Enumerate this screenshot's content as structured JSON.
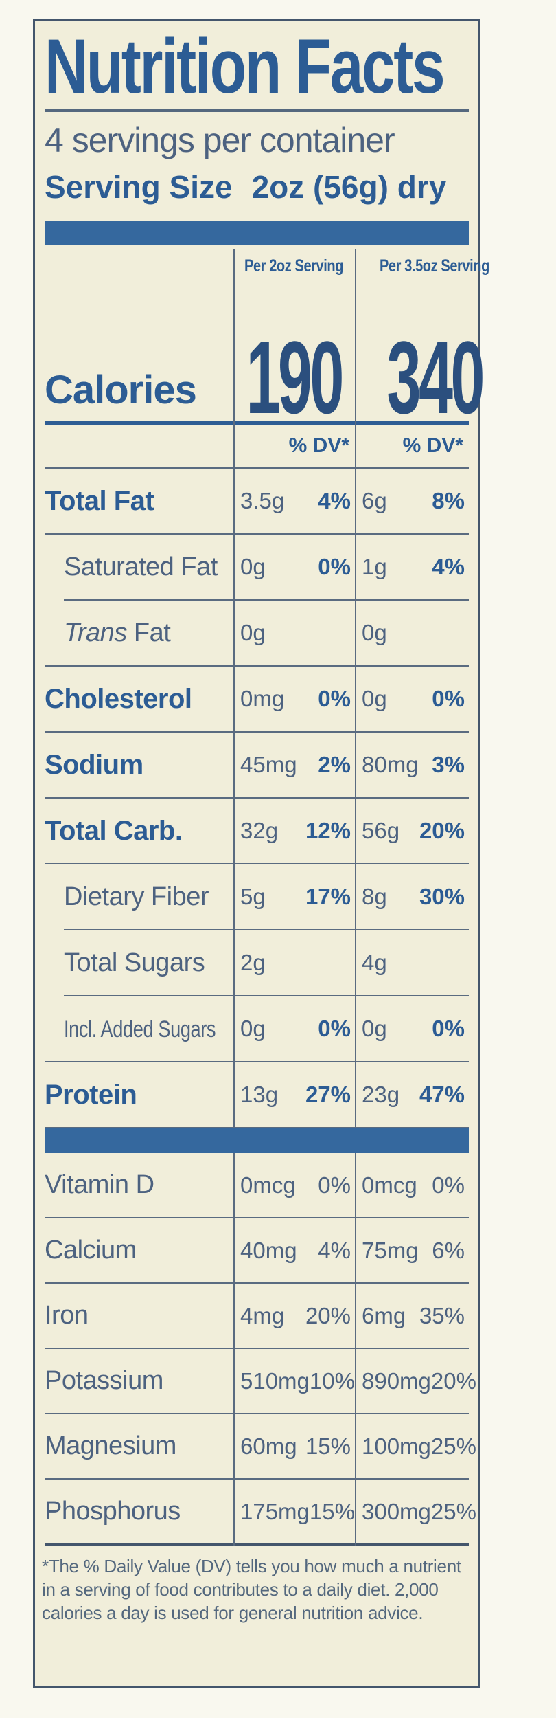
{
  "header": {
    "title": "Nutrition Facts",
    "servings_per_container": "4 servings per container",
    "serving_size_label": "Serving Size",
    "serving_size_value": "2oz (56g) dry"
  },
  "calories": {
    "label": "Calories",
    "col1_header": "Per 2oz Serving",
    "col2_header": "Per 3.5oz Serving",
    "col1_value": "190",
    "col2_value": "340"
  },
  "dv_header": "% DV*",
  "nutrients": [
    {
      "label": "Total Fat",
      "style": "main",
      "cells": [
        {
          "amt": "3.5g",
          "dv": "4%"
        },
        {
          "amt": "6g",
          "dv": "8%"
        }
      ]
    },
    {
      "label": "Saturated Fat",
      "style": "sub",
      "cells": [
        {
          "amt": "0g",
          "dv": "0%"
        },
        {
          "amt": "1g",
          "dv": "4%"
        }
      ]
    },
    {
      "label_italic": "Trans",
      "label_rest": " Fat",
      "style": "sub-italic",
      "cells": [
        {
          "amt": "0g",
          "dv": ""
        },
        {
          "amt": "0g",
          "dv": ""
        }
      ]
    },
    {
      "label": "Cholesterol",
      "style": "main",
      "cells": [
        {
          "amt": "0mg",
          "dv": "0%"
        },
        {
          "amt": "0g",
          "dv": "0%"
        }
      ]
    },
    {
      "label": "Sodium",
      "style": "main",
      "cells": [
        {
          "amt": "45mg",
          "dv": "2%"
        },
        {
          "amt": "80mg",
          "dv": "3%"
        }
      ]
    },
    {
      "label": "Total Carb.",
      "style": "main",
      "cells": [
        {
          "amt": "32g",
          "dv": "12%"
        },
        {
          "amt": "56g",
          "dv": "20%"
        }
      ]
    },
    {
      "label": "Dietary Fiber",
      "style": "sub",
      "cells": [
        {
          "amt": "5g",
          "dv": "17%"
        },
        {
          "amt": "8g",
          "dv": "30%"
        }
      ]
    },
    {
      "label": "Total Sugars",
      "style": "sub",
      "cells": [
        {
          "amt": "2g",
          "dv": ""
        },
        {
          "amt": "4g",
          "dv": ""
        }
      ]
    },
    {
      "label": "Incl. Added Sugars",
      "style": "sub-small",
      "cells": [
        {
          "amt": "0g",
          "dv": "0%"
        },
        {
          "amt": "0g",
          "dv": "0%"
        }
      ]
    },
    {
      "label": "Protein",
      "style": "main",
      "cells": [
        {
          "amt": "13g",
          "dv": "27%"
        },
        {
          "amt": "23g",
          "dv": "47%"
        }
      ]
    }
  ],
  "vitamins": [
    {
      "label": "Vitamin D",
      "cells": [
        {
          "amt": "0mcg",
          "dv": "0%"
        },
        {
          "amt": "0mcg",
          "dv": "0%"
        }
      ]
    },
    {
      "label": "Calcium",
      "cells": [
        {
          "amt": "40mg",
          "dv": "4%"
        },
        {
          "amt": "75mg",
          "dv": "6%"
        }
      ]
    },
    {
      "label": "Iron",
      "cells": [
        {
          "amt": "4mg",
          "dv": "20%"
        },
        {
          "amt": "6mg",
          "dv": "35%"
        }
      ]
    },
    {
      "label": "Potassium",
      "cells": [
        {
          "amt": "510mg",
          "dv": "10%"
        },
        {
          "amt": "890mg",
          "dv": "20%"
        }
      ]
    },
    {
      "label": "Magnesium",
      "cells": [
        {
          "amt": "60mg",
          "dv": "15%"
        },
        {
          "amt": "100mg",
          "dv": "25%"
        }
      ]
    },
    {
      "label": "Phosphorus",
      "cells": [
        {
          "amt": "175mg",
          "dv": "15%"
        },
        {
          "amt": "300mg",
          "dv": "25%"
        }
      ]
    }
  ],
  "footnote": "*The % Daily Value (DV) tells you how much a nutrient in a serving of food contributes to a daily diet. 2,000 calories a day is used for general nutrition advice.",
  "colors": {
    "label_background": "#f1eeda",
    "ink_strong_blue": "#2c5c94",
    "ink_muted_blue": "#4d6280",
    "bar_blue": "#35689e",
    "border": "#44566c"
  }
}
